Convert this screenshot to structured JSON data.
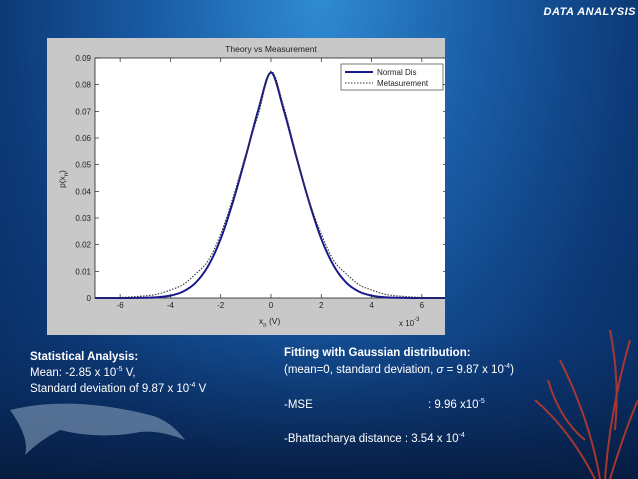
{
  "header": {
    "title": "DATA ANALYSIS"
  },
  "chart_data": {
    "type": "line",
    "title": "Theory vs Measurement",
    "xlabel_main": "x",
    "xlabel_sub": "n",
    "xlabel_unit": "(V)",
    "x_exponent_label": "x 10",
    "x_exponent_power": "-3",
    "ylabel_main": "p(x",
    "ylabel_sub": "n",
    "ylabel_close": ")",
    "xlim": [
      -7,
      7
    ],
    "ylim": [
      0,
      0.09
    ],
    "x_ticks": [
      -6,
      -4,
      -2,
      0,
      2,
      4,
      6
    ],
    "y_ticks": [
      0,
      0.01,
      0.02,
      0.03,
      0.04,
      0.05,
      0.06,
      0.07,
      0.08,
      0.09
    ],
    "y_tick_labels": [
      "0",
      "0.01",
      "0.02",
      "0.03",
      "0.04",
      "0.05",
      "0.06",
      "0.07",
      "0.08",
      "0.09"
    ],
    "legend_position": "top-right",
    "series": [
      {
        "name": "Normal Dis",
        "style": "solid",
        "color": "#1a1a8c",
        "x": [
          -7,
          -6,
          -5,
          -4.5,
          -4,
          -3.5,
          -3,
          -2.5,
          -2,
          -1.5,
          -1,
          -0.5,
          0,
          0.5,
          1,
          1.5,
          2,
          2.5,
          3,
          3.5,
          4,
          4.5,
          5,
          6,
          7
        ],
        "y": [
          0,
          0,
          0.0001,
          0.0003,
          0.0009,
          0.0024,
          0.0057,
          0.012,
          0.0222,
          0.0365,
          0.0532,
          0.0707,
          0.0845,
          0.0707,
          0.0532,
          0.0365,
          0.0222,
          0.012,
          0.0057,
          0.0024,
          0.0009,
          0.0003,
          0.0001,
          0,
          0
        ]
      },
      {
        "name": "Metasurement",
        "style": "dotted",
        "color": "#333333",
        "x": [
          -7,
          -6,
          -5,
          -4.5,
          -4,
          -3.5,
          -3,
          -2.5,
          -2,
          -1.5,
          -1,
          -0.5,
          0,
          0.5,
          1,
          1.5,
          2,
          2.5,
          3,
          3.5,
          4,
          4.5,
          5,
          6,
          7
        ],
        "y": [
          0,
          0.0002,
          0.0008,
          0.0015,
          0.003,
          0.005,
          0.009,
          0.014,
          0.024,
          0.038,
          0.054,
          0.069,
          0.085,
          0.072,
          0.054,
          0.037,
          0.024,
          0.014,
          0.009,
          0.005,
          0.003,
          0.0015,
          0.0008,
          0.0002,
          0
        ]
      }
    ]
  },
  "stats": {
    "heading": "Statistical Analysis:",
    "mean_prefix": "Mean: -2.85 x 10",
    "mean_exp": "-5",
    "mean_suffix": " V,",
    "std_prefix": "Standard deviation of 9.87 x 10",
    "std_exp": "-4",
    "std_suffix": " V"
  },
  "fit": {
    "heading": "Fitting with Gaussian distribution:",
    "params_prefix": "(mean=0, standard deviation, ",
    "sigma": "σ",
    "params_mid": " = 9.87 x 10",
    "params_exp": "-4",
    "params_suffix": ")",
    "mse_label": "-MSE",
    "mse_value_prefix": ":  9.96 x10",
    "mse_value_exp": "-5",
    "bhatt_label": "-Bhattacharya distance : 3.54 x 10",
    "bhatt_exp": "-4"
  }
}
